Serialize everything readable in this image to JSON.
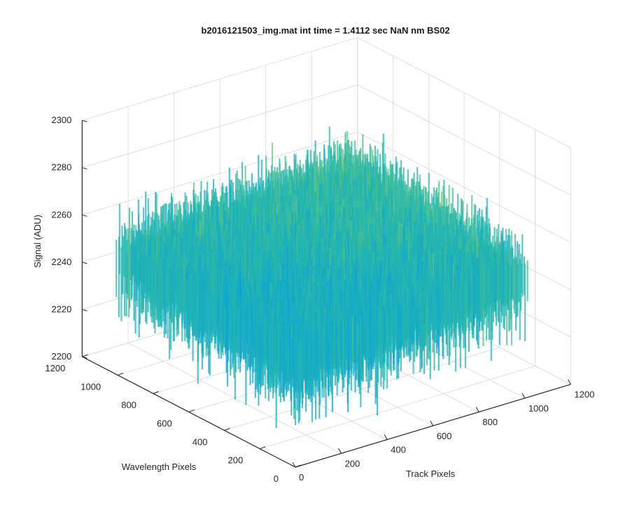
{
  "chart_data": {
    "type": "surface",
    "title": "b2016121503_img.mat int time = 1.4112 sec  NaN nm BS02",
    "xlabel": "Track Pixels",
    "ylabel": "Wavelength Pixels",
    "zlabel": "Signal (ADU)",
    "xlim": [
      0,
      1200
    ],
    "ylim": [
      0,
      1200
    ],
    "zlim": [
      2200,
      2300
    ],
    "xticks": [
      "0",
      "200",
      "400",
      "600",
      "800",
      "1000",
      "1200"
    ],
    "yticks": [
      "0",
      "200",
      "400",
      "600",
      "800",
      "1000",
      "1200"
    ],
    "zticks": [
      "2200",
      "2220",
      "2240",
      "2260",
      "2280",
      "2300"
    ],
    "x_extent": [
      0,
      1024
    ],
    "y_extent": [
      0,
      1024
    ],
    "signal_level": {
      "mean": 2250,
      "min": 2215,
      "max": 2290
    },
    "colormap": "parula",
    "grid": true
  }
}
